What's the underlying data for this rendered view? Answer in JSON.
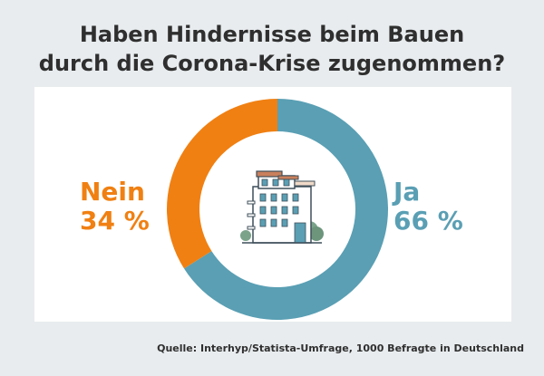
{
  "title_line1": "Haben Hindernisse beim Bauen",
  "title_line2": "durch die Corona-Krise zugenommen?",
  "source": "Quelle: Interhyp/Statista-Umfrage, 1000 Befragte in Deutschland",
  "chart_data": {
    "type": "pie",
    "title": "Haben Hindernisse beim Bauen durch die Corona-Krise zugenommen?",
    "donut": true,
    "slices": [
      {
        "label": "Ja",
        "value": 66,
        "value_label": "66 %",
        "color": "#5a9fb4"
      },
      {
        "label": "Nein",
        "value": 34,
        "value_label": "34 %",
        "color": "#f08012"
      }
    ]
  },
  "icon": "apartment-building-icon"
}
